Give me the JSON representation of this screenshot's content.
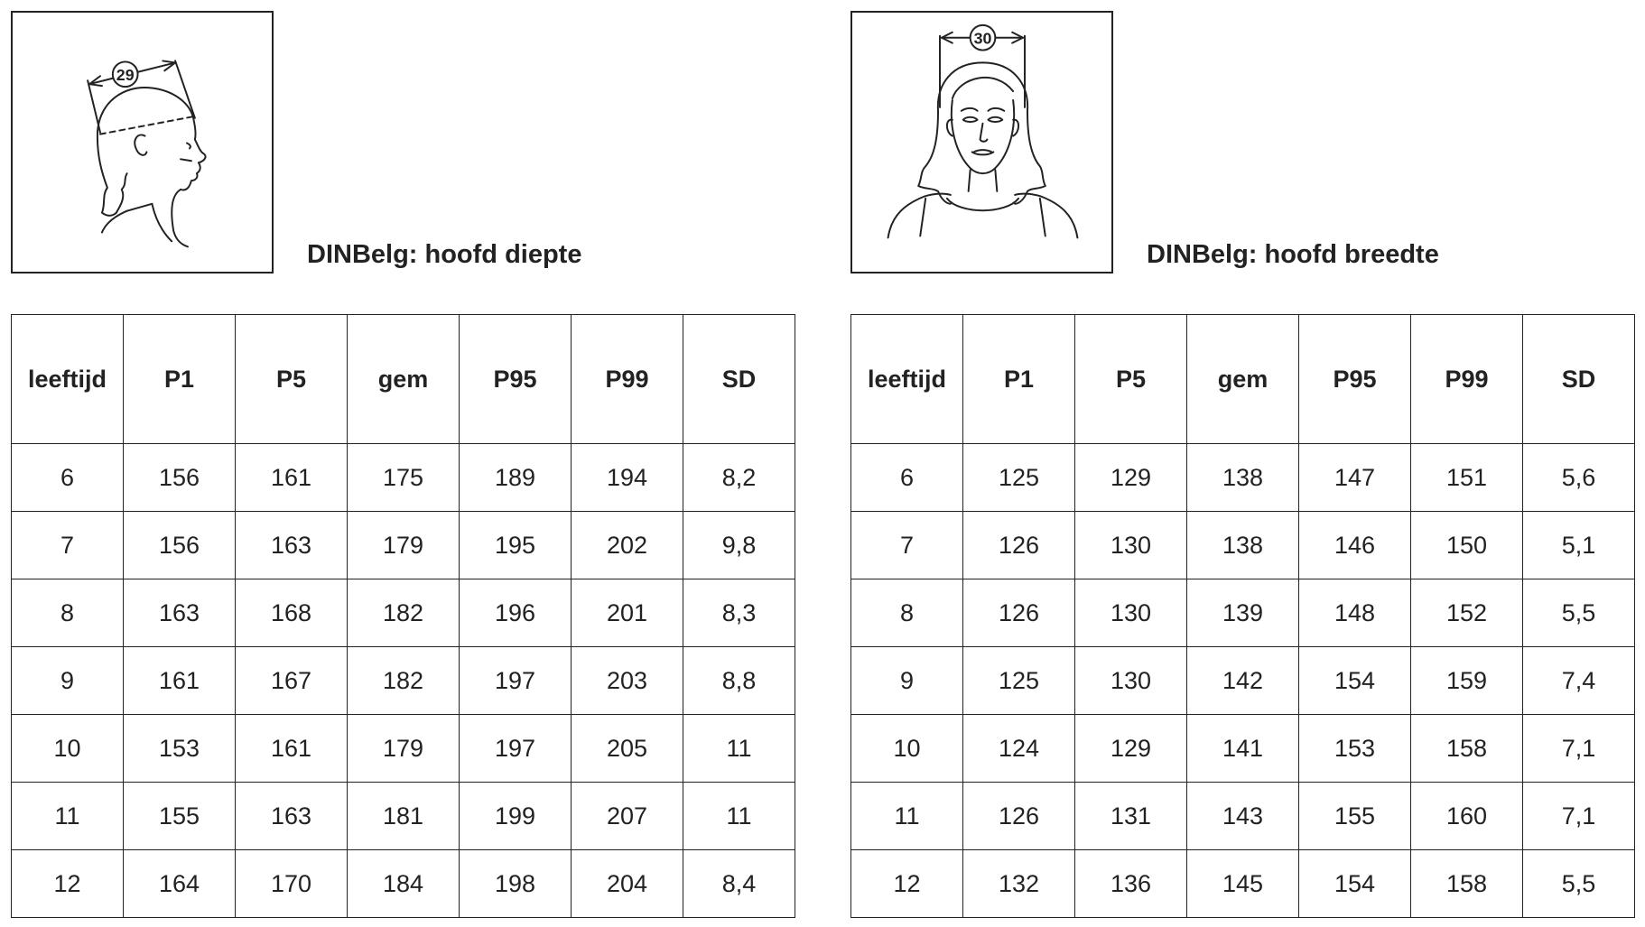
{
  "left": {
    "caption": "DINBelg: hoofd diepte",
    "badge": "29",
    "headers": [
      "leeftijd",
      "P1",
      "P5",
      "gem",
      "P95",
      "P99",
      "SD"
    ],
    "rows": [
      [
        "6",
        "156",
        "161",
        "175",
        "189",
        "194",
        "8,2"
      ],
      [
        "7",
        "156",
        "163",
        "179",
        "195",
        "202",
        "9,8"
      ],
      [
        "8",
        "163",
        "168",
        "182",
        "196",
        "201",
        "8,3"
      ],
      [
        "9",
        "161",
        "167",
        "182",
        "197",
        "203",
        "8,8"
      ],
      [
        "10",
        "153",
        "161",
        "179",
        "197",
        "205",
        "11"
      ],
      [
        "11",
        "155",
        "163",
        "181",
        "199",
        "207",
        "11"
      ],
      [
        "12",
        "164",
        "170",
        "184",
        "198",
        "204",
        "8,4"
      ]
    ]
  },
  "right": {
    "caption": "DINBelg: hoofd breedte",
    "badge": "30",
    "headers": [
      "leeftijd",
      "P1",
      "P5",
      "gem",
      "P95",
      "P99",
      "SD"
    ],
    "rows": [
      [
        "6",
        "125",
        "129",
        "138",
        "147",
        "151",
        "5,6"
      ],
      [
        "7",
        "126",
        "130",
        "138",
        "146",
        "150",
        "5,1"
      ],
      [
        "8",
        "126",
        "130",
        "139",
        "148",
        "152",
        "5,5"
      ],
      [
        "9",
        "125",
        "130",
        "142",
        "154",
        "159",
        "7,4"
      ],
      [
        "10",
        "124",
        "129",
        "141",
        "153",
        "158",
        "7,1"
      ],
      [
        "11",
        "126",
        "131",
        "143",
        "155",
        "160",
        "7,1"
      ],
      [
        "12",
        "132",
        "136",
        "145",
        "154",
        "158",
        "5,5"
      ]
    ]
  }
}
